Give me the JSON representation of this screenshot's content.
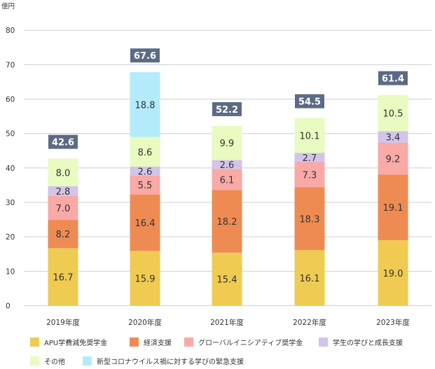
{
  "chart_data": {
    "type": "bar",
    "stacked": true,
    "unit_label": "億円",
    "categories": [
      "2019年度",
      "2020年度",
      "2021年度",
      "2022年度",
      "2023年度"
    ],
    "ylim": [
      0,
      80
    ],
    "yticks": [
      0,
      10,
      20,
      30,
      40,
      50,
      60,
      70,
      80
    ],
    "grid": true,
    "legend_position": "bottom",
    "series": [
      {
        "name": "APU学費減免奨学金",
        "color": "#EFCB52",
        "values": [
          16.7,
          15.9,
          15.4,
          16.1,
          19.0
        ]
      },
      {
        "name": "経済支援",
        "color": "#EE8B53",
        "values": [
          8.2,
          16.4,
          18.2,
          18.3,
          19.1
        ]
      },
      {
        "name": "グローバルイニシアティブ奨学金",
        "color": "#F9A9A6",
        "values": [
          7.0,
          5.5,
          6.1,
          7.3,
          9.2
        ]
      },
      {
        "name": "学生の学びと成長支援",
        "color": "#D3C4EA",
        "values": [
          2.8,
          2.6,
          2.6,
          2.7,
          3.4
        ]
      },
      {
        "name": "その他",
        "color": "#E8FBC0",
        "values": [
          8.0,
          8.6,
          9.9,
          10.1,
          10.5
        ]
      },
      {
        "name": "新型コロナウイルス禍に対する学びの緊急支援",
        "color": "#B3EBFA",
        "values": [
          null,
          18.8,
          null,
          null,
          null
        ]
      }
    ],
    "totals": [
      42.6,
      67.6,
      52.2,
      54.5,
      61.4
    ],
    "total_label_color": "#5D6A85"
  }
}
